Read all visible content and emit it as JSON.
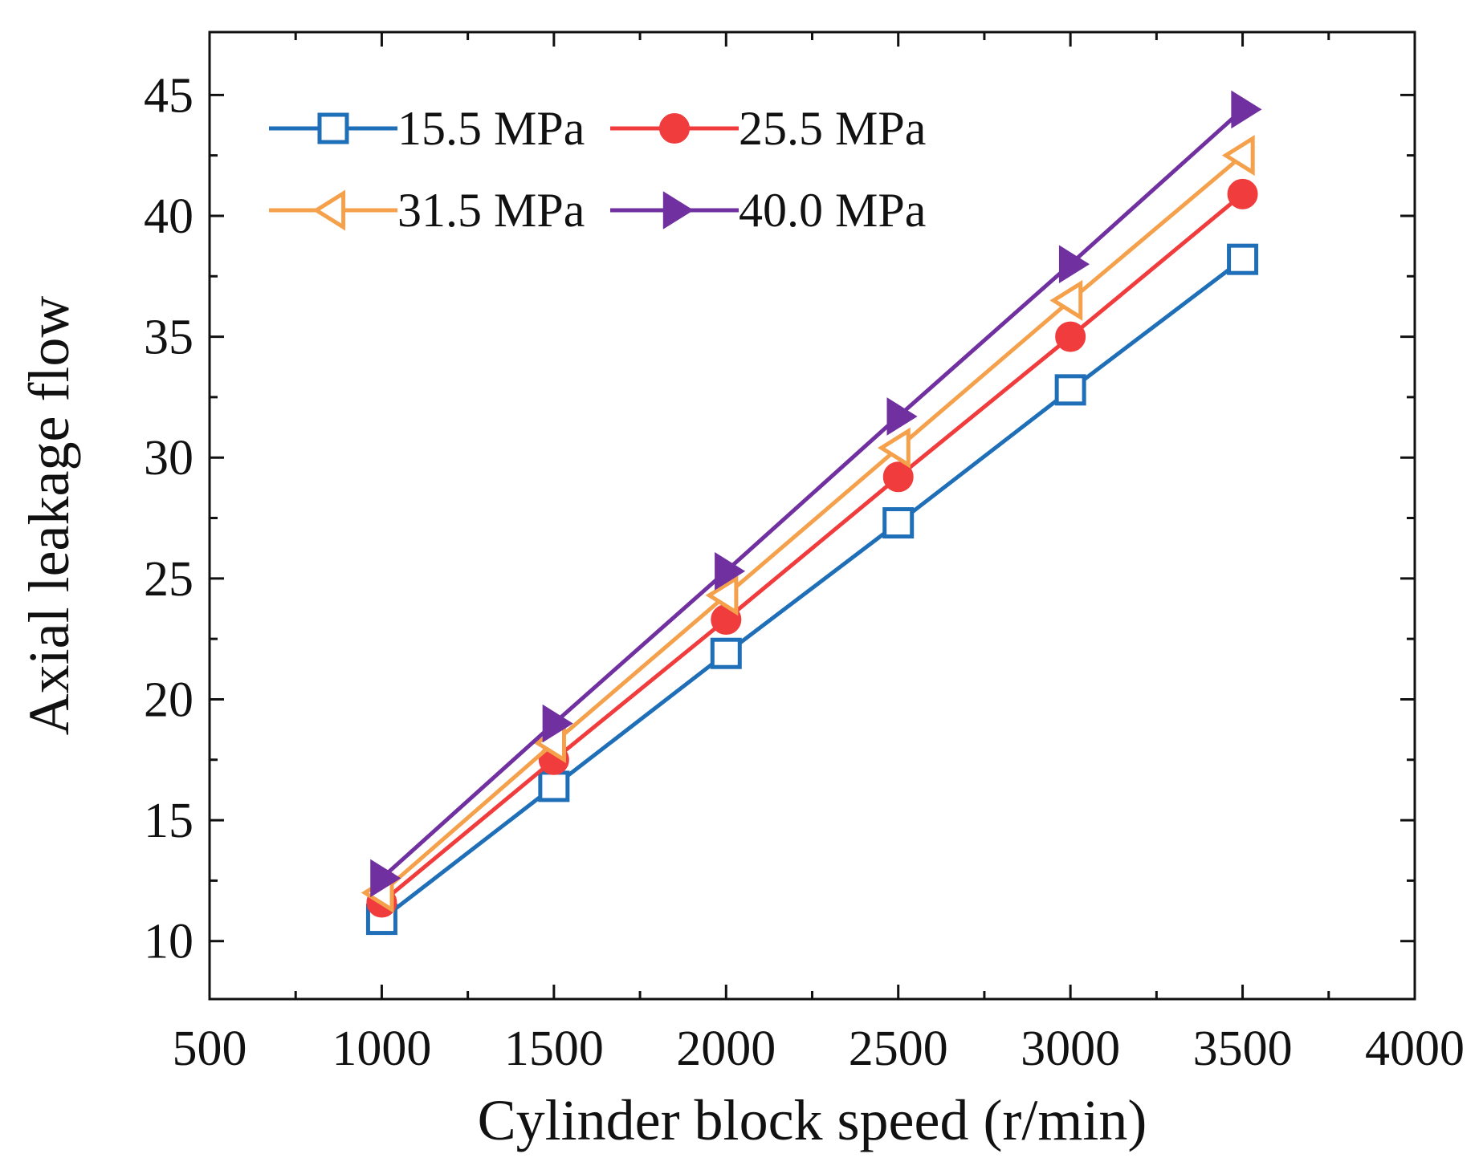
{
  "chart_data": {
    "type": "line",
    "title": "",
    "xlabel": "Cylinder block speed (r/min)",
    "ylabel": "Axial leakage flow",
    "xlim": [
      500,
      4000
    ],
    "ylim": [
      7.6,
      47.6
    ],
    "x_ticks": [
      500,
      1000,
      1500,
      2000,
      2500,
      3000,
      3500,
      4000
    ],
    "x_tick_labels": [
      "500",
      "1000",
      "1500",
      "2000",
      "2500",
      "3000",
      "3500",
      "4000"
    ],
    "y_ticks": [
      10,
      15,
      20,
      25,
      30,
      35,
      40,
      45
    ],
    "y_tick_labels": [
      "10",
      "15",
      "20",
      "25",
      "30",
      "35",
      "40",
      "45"
    ],
    "grid": false,
    "legend_position": "top-left",
    "x": [
      1000,
      1500,
      2000,
      2500,
      3000,
      3500
    ],
    "series": [
      {
        "name": "15.5 MPa",
        "color": "#1f6fb8",
        "marker": "square-open",
        "values": [
          10.9,
          16.4,
          21.9,
          27.3,
          32.8,
          38.2
        ]
      },
      {
        "name": "25.5 MPa",
        "color": "#f03c3c",
        "marker": "circle-filled",
        "values": [
          11.6,
          17.5,
          23.3,
          29.2,
          35.0,
          40.9
        ]
      },
      {
        "name": "31.5 MPa",
        "color": "#f5a04a",
        "marker": "triangle-left-open",
        "values": [
          12.0,
          18.2,
          24.3,
          30.4,
          36.5,
          42.5
        ]
      },
      {
        "name": "40.0 MPa",
        "color": "#7030a0",
        "marker": "triangle-right-filled",
        "values": [
          12.6,
          19.0,
          25.3,
          31.7,
          38.0,
          44.4
        ]
      }
    ]
  }
}
